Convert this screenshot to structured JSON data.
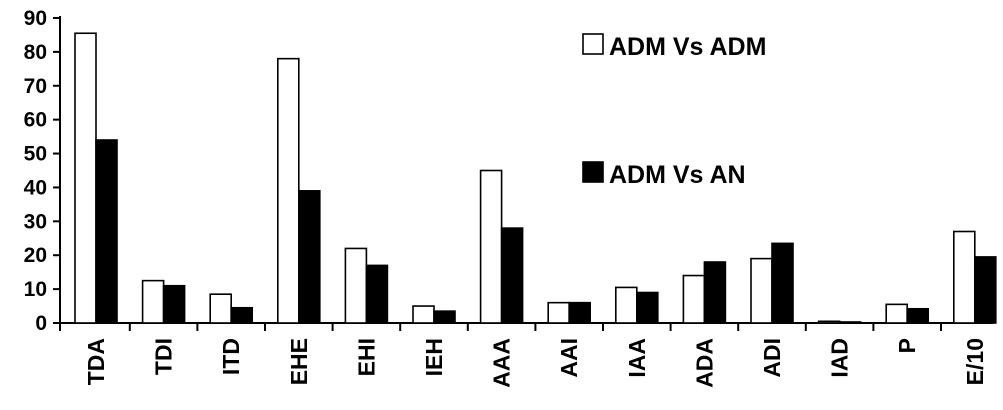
{
  "chart_data": {
    "type": "bar",
    "title": "",
    "xlabel": "",
    "ylabel": "",
    "ylim": [
      0,
      90
    ],
    "yticks": [
      "0",
      "10",
      "20",
      "30",
      "40",
      "50",
      "60",
      "70",
      "80",
      "90"
    ],
    "grid": false,
    "legend_position": "top-right",
    "categories": [
      "TDA",
      "TDI",
      "ITD",
      "EHE",
      "EHI",
      "IEH",
      "AAA",
      "AAI",
      "IAA",
      "ADA",
      "ADI",
      "IAD",
      "P",
      "E/10"
    ],
    "series": [
      {
        "name": "ADM Vs ADM",
        "fill": "#ffffff",
        "values": [
          85.5,
          12.5,
          8.5,
          78,
          22,
          5,
          45,
          6,
          10.5,
          14,
          19,
          0.5,
          5.5,
          27
        ]
      },
      {
        "name": "ADM Vs AN",
        "fill": "#000000",
        "values": [
          54,
          11,
          4.5,
          39,
          17,
          3.5,
          28,
          6,
          9,
          18,
          23.5,
          0.3,
          4.2,
          19.5
        ]
      }
    ]
  }
}
